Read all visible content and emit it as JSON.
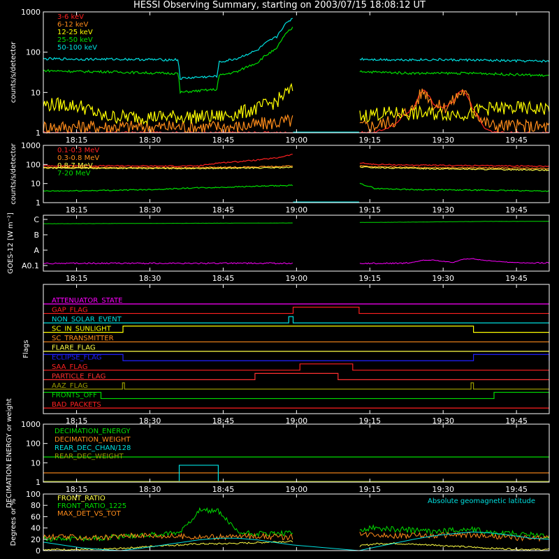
{
  "title": "HESSI Observing Summary, starting on 2003/07/15 18:08:12 UT",
  "time_axis": {
    "tick_labels": [
      "18:15",
      "18:30",
      "18:45",
      "19:00",
      "19:15",
      "19:30",
      "19:45"
    ],
    "tick_minutes": [
      15,
      30,
      45,
      60,
      75,
      90,
      105
    ],
    "start_minute": 8.2,
    "end_minute": 111.7,
    "gap_start_minute": 59.3,
    "gap_end_minute": 72.8,
    "note_hours": "minutes measured from 18:00 UT"
  },
  "chart_data": [
    {
      "id": "low-energy",
      "type": "line",
      "ylabel": "counts/s/detector",
      "yscale": "log",
      "ylim": [
        1,
        1000
      ],
      "y_tick_labels": [
        "1",
        "10",
        "100",
        "1000"
      ],
      "x": [
        8.2,
        12,
        16,
        20,
        24,
        28,
        32,
        35.9,
        36,
        40,
        43.9,
        44,
        48,
        52,
        56,
        59.2,
        72.8,
        76,
        80,
        84,
        86,
        88,
        90,
        92,
        94,
        96,
        98,
        100,
        104,
        108,
        111.7
      ],
      "series": [
        {
          "name": "3-6 keV",
          "color": "#ff2020",
          "values": [
            1,
            1,
            1,
            1,
            1,
            1,
            1,
            1,
            1,
            1,
            1,
            1,
            1,
            1,
            1,
            1,
            1,
            1,
            1.5,
            4,
            12,
            5,
            4,
            6,
            12,
            4,
            1.5,
            1,
            1,
            1,
            1
          ]
        },
        {
          "name": "6-12 keV",
          "color": "#ff8c1a",
          "values": [
            1.4,
            1.4,
            1.4,
            1.4,
            1.4,
            1.4,
            1.4,
            1.4,
            1.4,
            1.4,
            1.4,
            1.4,
            1.4,
            1.6,
            1.8,
            2,
            1.5,
            1.5,
            2,
            4,
            11,
            5,
            4,
            6,
            11,
            4,
            2,
            1.5,
            1.5,
            1.4,
            1.4
          ]
        },
        {
          "name": "12-25 keV",
          "color": "#ffff00",
          "values": [
            5,
            5,
            4.5,
            2.5,
            2.5,
            2.5,
            2.5,
            2.5,
            2.5,
            2.5,
            2.5,
            2.5,
            3,
            4,
            6,
            12,
            2.5,
            3,
            3,
            3,
            3,
            3,
            3,
            3,
            3,
            3,
            4,
            4,
            4,
            4,
            4
          ]
        },
        {
          "name": "25-50 keV",
          "color": "#00dd00",
          "values": [
            35,
            34,
            33,
            33,
            32,
            31,
            30,
            30,
            10,
            11,
            12,
            26,
            33,
            55,
            120,
            400,
            34,
            32,
            31,
            30,
            30,
            30,
            30,
            30,
            30,
            30,
            30,
            29,
            28,
            27,
            26
          ]
        },
        {
          "name": "50-100 keV",
          "color": "#00e0e0",
          "values": [
            68,
            68,
            67,
            67,
            67,
            66,
            65,
            65,
            22,
            24,
            25,
            55,
            70,
            110,
            240,
            700,
            68,
            66,
            65,
            65,
            65,
            65,
            65,
            64,
            64,
            64,
            63,
            62,
            61,
            60,
            60
          ]
        }
      ]
    },
    {
      "id": "high-energy",
      "type": "line",
      "ylabel": "counts/s/detector",
      "yscale": "log",
      "ylim": [
        1,
        1000
      ],
      "y_tick_labels": [
        "1",
        "10",
        "100",
        "1000"
      ],
      "x": [
        8.2,
        16,
        24,
        32,
        40,
        44,
        48,
        52,
        56,
        59.2,
        72.8,
        76,
        84,
        92,
        100,
        108,
        111.7
      ],
      "series": [
        {
          "name": "0.1-0.3 MeV",
          "color": "#ff2020",
          "values": [
            85,
            85,
            84,
            82,
            83,
            120,
            140,
            170,
            220,
            330,
            120,
            100,
            92,
            88,
            85,
            82,
            80
          ]
        },
        {
          "name": "0.3-0.8 MeV",
          "color": "#ff8c1a",
          "values": [
            70,
            70,
            69,
            68,
            68,
            70,
            72,
            74,
            78,
            85,
            85,
            75,
            70,
            68,
            65,
            62,
            60
          ]
        },
        {
          "name": "0.8-7 MeV",
          "color": "#ffff44",
          "values": [
            65,
            64,
            63,
            62,
            62,
            63,
            64,
            66,
            68,
            70,
            75,
            68,
            62,
            58,
            55,
            52,
            50
          ]
        },
        {
          "name": "7-20 MeV",
          "color": "#00dd00",
          "values": [
            4,
            4.2,
            4.5,
            5,
            6,
            6.2,
            6.8,
            7.2,
            7.6,
            8,
            10,
            5.5,
            4.8,
            4.6,
            4.4,
            4.2,
            4
          ]
        }
      ]
    },
    {
      "id": "goes",
      "type": "line",
      "ylabel": "GOES-12 [W m⁻²]",
      "y_tick_labels": [
        "A0.1",
        "A",
        "B",
        "C"
      ],
      "x": [
        8.2,
        20,
        40,
        59.2,
        72.8,
        82,
        86,
        88,
        92,
        94,
        96,
        98,
        104,
        111.7
      ],
      "series": [
        {
          "name": "GOES high",
          "color": "#00dd00",
          "values": [
            2.72,
            2.73,
            2.75,
            2.77,
            2.8,
            2.82,
            2.83,
            2.84,
            2.85,
            2.86,
            2.86,
            2.87,
            2.87,
            2.88
          ]
        },
        {
          "name": "GOES low",
          "color": "#ff00ff",
          "values": [
            0.1,
            0.1,
            0.1,
            0.1,
            0.1,
            0.1,
            0.35,
            0.35,
            0.2,
            0.4,
            0.45,
            0.35,
            0.2,
            0.12
          ]
        }
      ]
    },
    {
      "id": "flags",
      "type": "line",
      "ylabel": "Flags",
      "flags": [
        {
          "name": "ATTENUATOR_STATE",
          "color": "#ff00ff",
          "on": []
        },
        {
          "name": "GAP_FLAG",
          "color": "#ff2020",
          "on": [
            [
              59.3,
              72.8
            ]
          ]
        },
        {
          "name": "NON_SOLAR_EVENT",
          "color": "#00e0e0",
          "on": [
            [
              58.4,
              59.3
            ]
          ]
        },
        {
          "name": "SC_IN_SUNLIGHT",
          "color": "#ffff00",
          "on": [
            [
              24.5,
              96.2
            ]
          ]
        },
        {
          "name": "SC_TRANSMITTER",
          "color": "#ff8c1a",
          "on": []
        },
        {
          "name": "FLARE_FLAG",
          "color": "#ffff44",
          "on": []
        },
        {
          "name": "ECLIPSE_FLAG",
          "color": "#2020ff",
          "on": [
            [
              8.2,
              24.5
            ],
            [
              96.2,
              111.7
            ]
          ]
        },
        {
          "name": "SAA_FLAG",
          "color": "#ff2020",
          "on": [
            [
              60.7,
              71.5
            ]
          ]
        },
        {
          "name": "PARTICLE_FLAG",
          "color": "#ff3030",
          "on": [
            [
              51.5,
              68.5
            ]
          ]
        },
        {
          "name": "AAZ_FLAG",
          "color": "#999900",
          "on": [
            [
              24.4,
              24.8
            ],
            [
              95.7,
              96.2
            ]
          ]
        },
        {
          "name": "FRONTS_OFF",
          "color": "#00dd00",
          "on": [
            [
              8.2,
              20
            ],
            [
              100.4,
              111.7
            ]
          ]
        },
        {
          "name": "BAD_PACKETS",
          "color": "#ff2020",
          "on": []
        }
      ]
    },
    {
      "id": "decimation",
      "type": "line",
      "ylabel": "DECIMATION ENERGY or weight",
      "yscale": "log",
      "ylim": [
        1,
        1000
      ],
      "y_tick_labels": [
        "1",
        "10",
        "100",
        "1000"
      ],
      "series": [
        {
          "name": "DECIMATION_ENERGY",
          "color": "#00dd00",
          "constant": 20
        },
        {
          "name": "DECIMATION_WEIGHT",
          "color": "#ff8c1a",
          "constant": 3
        },
        {
          "name": "REAR_DEC_CHAN/128",
          "color": "#00e0e0",
          "constant": 1,
          "step": {
            "from": 36,
            "to": 44,
            "value": 7.5
          }
        },
        {
          "name": "REAR_DEC_WEIGHT",
          "color": "#999900",
          "constant": 1
        }
      ]
    },
    {
      "id": "ratios",
      "type": "line",
      "ylabel": "Degrees or %",
      "ylim": [
        0,
        100
      ],
      "y_tick_labels": [
        "0",
        "20",
        "40",
        "60",
        "80",
        "100"
      ],
      "annotation": "Absolute geomagnetic latitude",
      "annotation_color": "#00e0e0",
      "x": [
        8.2,
        12,
        16,
        20,
        24,
        28,
        32,
        36,
        40,
        44,
        48,
        52,
        56,
        59.2,
        72.8,
        76,
        80,
        84,
        88,
        92,
        96,
        100,
        104,
        108,
        111.7
      ],
      "series": [
        {
          "name": "FRONT_RATIO",
          "color": "#ffff44",
          "values": [
            2,
            2,
            2,
            2,
            4,
            6,
            9,
            10,
            12,
            12,
            13,
            14,
            16,
            16,
            8,
            12,
            13,
            11,
            10,
            8,
            6,
            4,
            3,
            2,
            2
          ]
        },
        {
          "name": "FRONT_RATIO_1225",
          "color": "#00dd00",
          "values": [
            20,
            22,
            22,
            22,
            25,
            28,
            28,
            32,
            70,
            70,
            32,
            30,
            30,
            30,
            36,
            40,
            38,
            36,
            34,
            36,
            38,
            32,
            30,
            28,
            25
          ]
        },
        {
          "name": "MAX_DET_VS_TOT",
          "color": "#ff8c1a",
          "values": [
            24,
            24,
            23,
            22,
            26,
            28,
            26,
            25,
            24,
            24,
            25,
            26,
            24,
            24,
            28,
            30,
            26,
            27,
            26,
            28,
            27,
            25,
            23,
            22,
            22
          ]
        },
        {
          "name": "Absolute geomagnetic latitude",
          "color": "#00e0e0",
          "values": [
            15,
            10,
            5,
            2,
            0,
            4,
            9,
            14,
            19,
            22,
            22,
            19,
            14,
            10,
            0,
            6,
            13,
            20,
            26,
            30,
            33,
            31,
            27,
            22,
            20
          ]
        }
      ]
    }
  ]
}
